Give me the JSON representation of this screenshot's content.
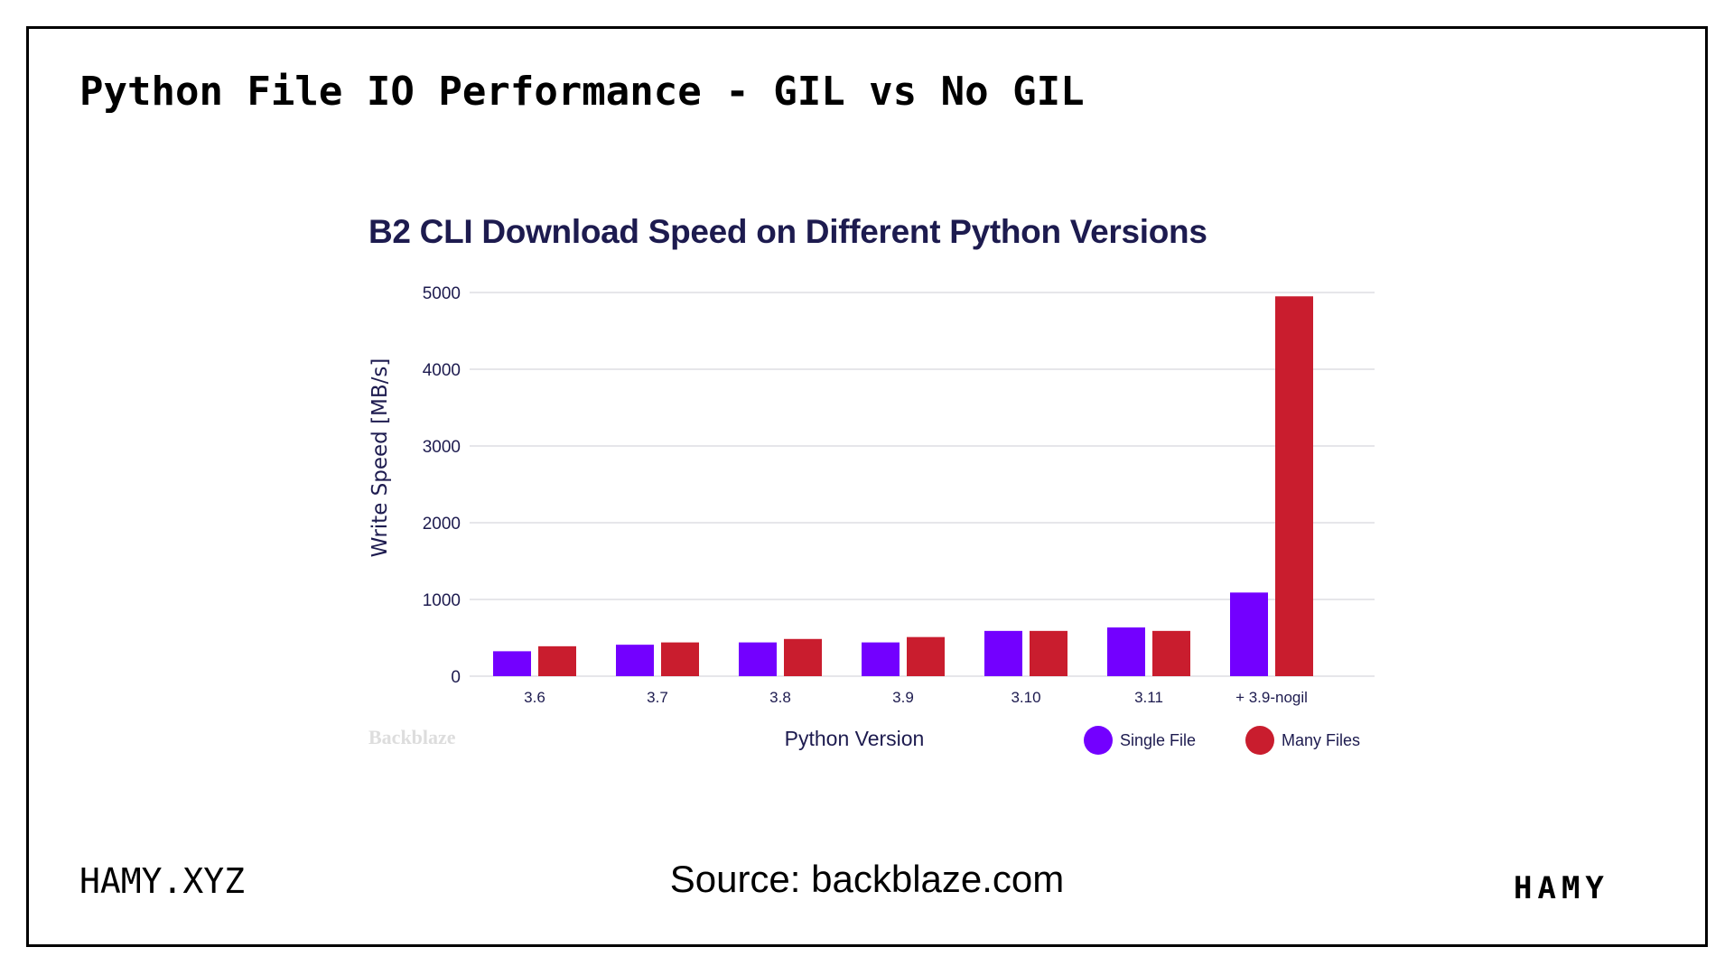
{
  "slide": {
    "title": "Python File IO Performance - GIL vs No GIL",
    "footer_left": "HAMY.XYZ",
    "source": "Source: backblaze.com",
    "logo": "HAMY",
    "watermark": "Backblaze"
  },
  "chart_data": {
    "type": "bar",
    "title": "B2 CLI Download Speed on Different Python Versions",
    "xlabel": "Python Version",
    "ylabel": "Write Speed [MB/s]",
    "ylim": [
      0,
      5000
    ],
    "yticks": [
      0,
      1000,
      2000,
      3000,
      4000,
      5000
    ],
    "grid": true,
    "legend_position": "bottom-right",
    "categories": [
      "3.6",
      "3.7",
      "3.8",
      "3.9",
      "3.10",
      "3.11",
      "+ 3.9-nogil"
    ],
    "series": [
      {
        "name": "Single File",
        "color": "#7300ff",
        "values": [
          325,
          410,
          440,
          440,
          590,
          635,
          1090
        ]
      },
      {
        "name": "Many Files",
        "color": "#c91d2e",
        "values": [
          390,
          440,
          485,
          510,
          590,
          590,
          4950
        ]
      }
    ]
  }
}
